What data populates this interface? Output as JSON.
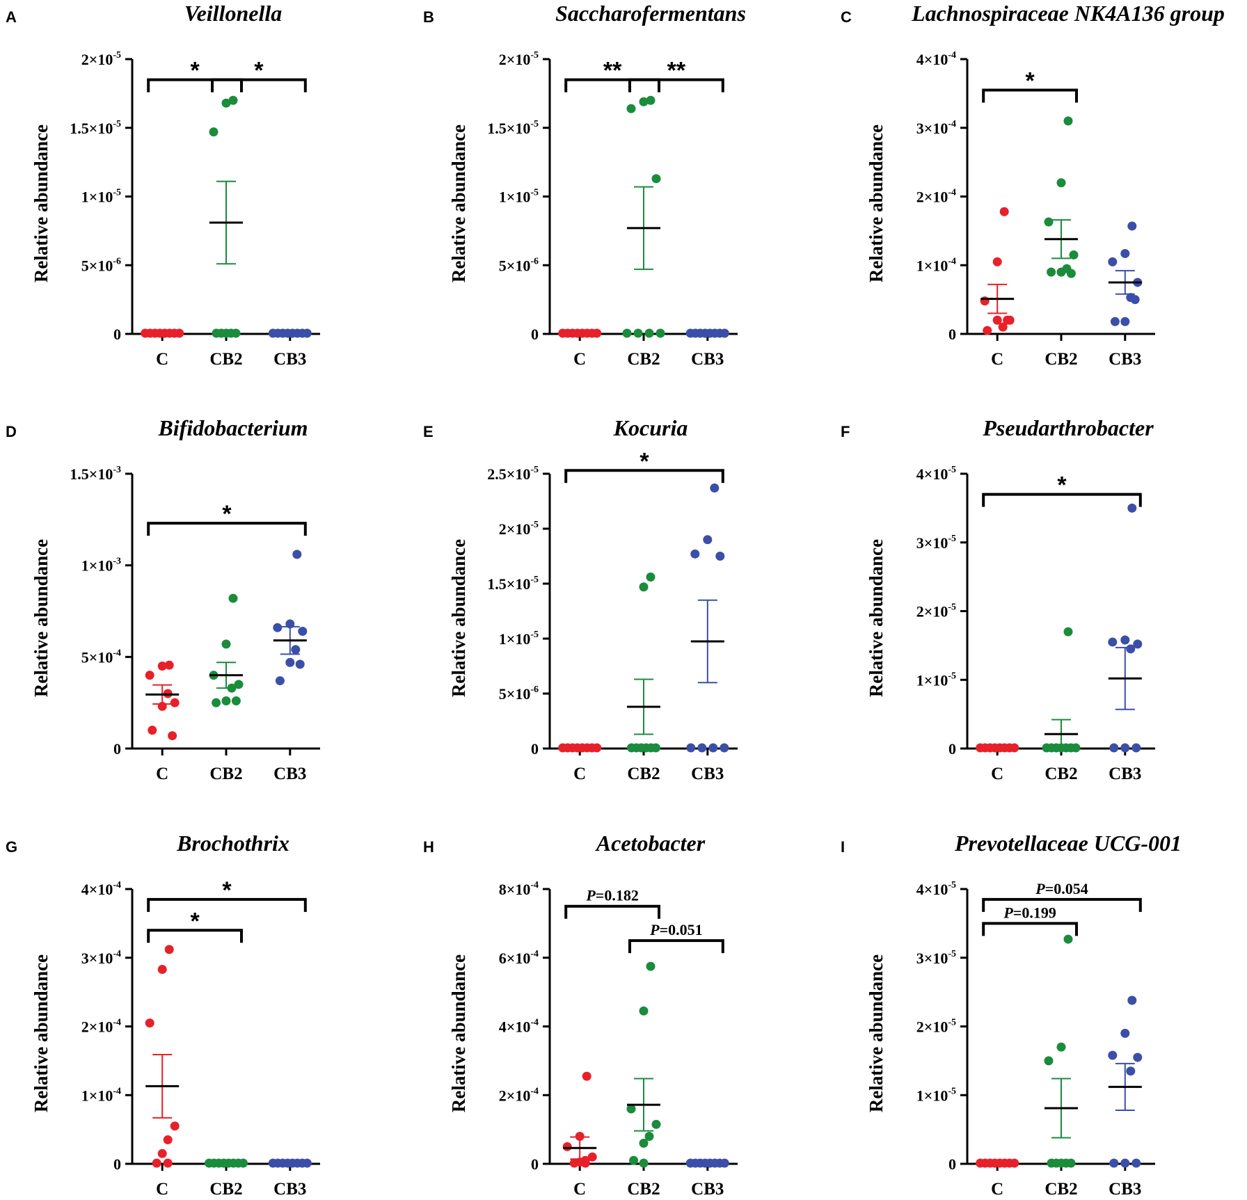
{
  "colors": {
    "C": "#e8202a",
    "CB2": "#1a8c3c",
    "CB3": "#3b4fa8",
    "axis": "#000000"
  },
  "panels": [
    {
      "letter": "A",
      "title": "Veillonella",
      "ylabel": "Relative abundance",
      "ticks": [
        {
          "value": 0,
          "label": "0",
          "exp": ""
        },
        {
          "value": 5e-06,
          "label": "5×10",
          "exp": "-6"
        },
        {
          "value": 1e-05,
          "label": "1×10",
          "exp": "-5"
        },
        {
          "value": 1.5e-05,
          "label": "1.5×10",
          "exp": "-5"
        },
        {
          "value": 2e-05,
          "label": "2×10",
          "exp": "-5"
        }
      ],
      "ymax": 2e-05,
      "groups": [
        {
          "name": "C",
          "points": [
            0,
            0,
            0,
            0,
            0,
            0,
            0,
            0
          ],
          "mean": 0,
          "sem": 0
        },
        {
          "name": "CB2",
          "points": [
            1.7e-05,
            1.68e-05,
            1.47e-05,
            0,
            0,
            0,
            0,
            0
          ],
          "mean": 8.1e-06,
          "sem": 3e-06
        },
        {
          "name": "CB3",
          "points": [
            0,
            0,
            0,
            0,
            0,
            0,
            0,
            0
          ],
          "mean": 0,
          "sem": 0
        }
      ],
      "sig": [
        {
          "from": 0,
          "to": 1,
          "y": 1.85e-05,
          "label": "*"
        },
        {
          "from": 1,
          "to": 2,
          "y": 1.85e-05,
          "label": "*"
        }
      ]
    },
    {
      "letter": "B",
      "title": "Saccharofermentans",
      "ylabel": "Relative abundance",
      "ticks": [
        {
          "value": 0,
          "label": "0",
          "exp": ""
        },
        {
          "value": 5e-06,
          "label": "5×10",
          "exp": "-6"
        },
        {
          "value": 1e-05,
          "label": "1×10",
          "exp": "-5"
        },
        {
          "value": 1.5e-05,
          "label": "1.5×10",
          "exp": "-5"
        },
        {
          "value": 2e-05,
          "label": "2×10",
          "exp": "-5"
        }
      ],
      "ymax": 2e-05,
      "groups": [
        {
          "name": "C",
          "points": [
            0,
            0,
            0,
            0,
            0,
            0,
            0,
            0
          ],
          "mean": 0,
          "sem": 0
        },
        {
          "name": "CB2",
          "points": [
            1.7e-05,
            1.69e-05,
            1.64e-05,
            1.13e-05,
            0,
            0,
            0,
            0
          ],
          "mean": 7.7e-06,
          "sem": 3e-06
        },
        {
          "name": "CB3",
          "points": [
            0,
            0,
            0,
            0,
            0,
            0,
            0,
            0
          ],
          "mean": 0,
          "sem": 0
        }
      ],
      "sig": [
        {
          "from": 0,
          "to": 1,
          "y": 1.85e-05,
          "label": "**"
        },
        {
          "from": 1,
          "to": 2,
          "y": 1.85e-05,
          "label": "**"
        }
      ]
    },
    {
      "letter": "C",
      "title": "Lachnospiraceae NK4A136 group",
      "ylabel": "Relative abundance",
      "ticks": [
        {
          "value": 0,
          "label": "0",
          "exp": ""
        },
        {
          "value": 0.0001,
          "label": "1×10",
          "exp": "-4"
        },
        {
          "value": 0.0002,
          "label": "2×10",
          "exp": "-4"
        },
        {
          "value": 0.0003,
          "label": "3×10",
          "exp": "-4"
        },
        {
          "value": 0.0004,
          "label": "4×10",
          "exp": "-4"
        }
      ],
      "ymax": 0.0004,
      "groups": [
        {
          "name": "C",
          "points": [
            0.000178,
            0.000105,
            4.8e-05,
            2e-05,
            1e-05,
            2e-05,
            5e-06,
            2e-05
          ],
          "mean": 5.1e-05,
          "sem": 2.1e-05
        },
        {
          "name": "CB2",
          "points": [
            0.00031,
            0.00022,
            0.000163,
            0.000115,
            9.5e-05,
            9e-05,
            9e-05,
            8.8e-05
          ],
          "mean": 0.000138,
          "sem": 2.8e-05
        },
        {
          "name": "CB3",
          "points": [
            0.000157,
            0.000117,
            0.000105,
            7.5e-05,
            5.3e-05,
            1.8e-05,
            1.8e-05,
            5e-05
          ],
          "mean": 7.5e-05,
          "sem": 1.7e-05
        }
      ],
      "sig": [
        {
          "from": 0,
          "to": 1,
          "y": 0.000355,
          "label": "*"
        }
      ]
    },
    {
      "letter": "D",
      "title": "Bifidobacterium",
      "ylabel": "Relative abundance",
      "ticks": [
        {
          "value": 0,
          "label": "0",
          "exp": ""
        },
        {
          "value": 0.0005,
          "label": "5×10",
          "exp": "-4"
        },
        {
          "value": 0.001,
          "label": "1×10",
          "exp": "-3"
        },
        {
          "value": 0.0015,
          "label": "1.5×10",
          "exp": "-3"
        }
      ],
      "ymax": 0.0015,
      "groups": [
        {
          "name": "C",
          "points": [
            0.000455,
            0.00045,
            0.0004,
            0.00025,
            0.0003,
            0.00023,
            0.0001,
            7e-05
          ],
          "mean": 0.000295,
          "sem": 5.2e-05
        },
        {
          "name": "CB2",
          "points": [
            0.00082,
            0.00057,
            0.0004,
            0.00035,
            0.00033,
            0.00026,
            0.00025,
            0.00026
          ],
          "mean": 0.0004,
          "sem": 7e-05
        },
        {
          "name": "CB3",
          "points": [
            0.00106,
            0.00068,
            0.00066,
            0.00064,
            0.00054,
            0.00047,
            0.00037,
            0.00046
          ],
          "mean": 0.00059,
          "sem": 7.5e-05
        }
      ],
      "sig": [
        {
          "from": 0,
          "to": 2,
          "y": 0.00123,
          "label": "*"
        }
      ]
    },
    {
      "letter": "E",
      "title": "Kocuria",
      "ylabel": "Relative abundance",
      "ticks": [
        {
          "value": 0,
          "label": "0",
          "exp": ""
        },
        {
          "value": 5e-06,
          "label": "5×10",
          "exp": "-6"
        },
        {
          "value": 1e-05,
          "label": "1×10",
          "exp": "-5"
        },
        {
          "value": 1.5e-05,
          "label": "1.5×10",
          "exp": "-5"
        },
        {
          "value": 2e-05,
          "label": "2×10",
          "exp": "-5"
        },
        {
          "value": 2.5e-05,
          "label": "2.5×10",
          "exp": "-5"
        }
      ],
      "ymax": 2.5e-05,
      "groups": [
        {
          "name": "C",
          "points": [
            0,
            0,
            0,
            0,
            0,
            0,
            0,
            0
          ],
          "mean": 0,
          "sem": 0
        },
        {
          "name": "CB2",
          "points": [
            1.56e-05,
            1.47e-05,
            0,
            0,
            0,
            0,
            0,
            0
          ],
          "mean": 3.8e-06,
          "sem": 2.5e-06
        },
        {
          "name": "CB3",
          "points": [
            2.37e-05,
            1.9e-05,
            1.77e-05,
            1.75e-05,
            0,
            0,
            0,
            0
          ],
          "mean": 9.75e-06,
          "sem": 3.75e-06
        }
      ],
      "sig": [
        {
          "from": 0,
          "to": 2,
          "y": 2.53e-05,
          "label": "*"
        }
      ]
    },
    {
      "letter": "F",
      "title": "Pseudarthrobacter",
      "ylabel": "Relative abundance",
      "ticks": [
        {
          "value": 0,
          "label": "0",
          "exp": ""
        },
        {
          "value": 1e-05,
          "label": "1×10",
          "exp": "-5"
        },
        {
          "value": 2e-05,
          "label": "2×10",
          "exp": "-5"
        },
        {
          "value": 3e-05,
          "label": "3×10",
          "exp": "-5"
        },
        {
          "value": 4e-05,
          "label": "4×10",
          "exp": "-5"
        }
      ],
      "ymax": 4e-05,
      "groups": [
        {
          "name": "C",
          "points": [
            0,
            0,
            0,
            0,
            0,
            0,
            0,
            0
          ],
          "mean": 0,
          "sem": 0
        },
        {
          "name": "CB2",
          "points": [
            1.7e-05,
            0,
            0,
            0,
            0,
            0,
            0,
            0
          ],
          "mean": 2.1e-06,
          "sem": 2.1e-06
        },
        {
          "name": "CB3",
          "points": [
            3.5e-05,
            1.58e-05,
            1.55e-05,
            1.52e-05,
            1.45e-05,
            0,
            0,
            0
          ],
          "mean": 1.02e-05,
          "sem": 4.5e-06
        }
      ],
      "sig": [
        {
          "from": 0,
          "to": 2,
          "y": 3.7e-05,
          "label": "*"
        }
      ]
    },
    {
      "letter": "G",
      "title": "Brochothrix",
      "ylabel": "Relative abundance",
      "ticks": [
        {
          "value": 0,
          "label": "0",
          "exp": ""
        },
        {
          "value": 0.0001,
          "label": "1×10",
          "exp": "-4"
        },
        {
          "value": 0.0002,
          "label": "2×10",
          "exp": "-4"
        },
        {
          "value": 0.0003,
          "label": "3×10",
          "exp": "-4"
        },
        {
          "value": 0.0004,
          "label": "4×10",
          "exp": "-4"
        }
      ],
      "ymax": 0.0004,
      "groups": [
        {
          "name": "C",
          "points": [
            0.000312,
            0.000283,
            0.000205,
            5.5e-05,
            3.5e-05,
            1.5e-05,
            0,
            0
          ],
          "mean": 0.000113,
          "sem": 4.6e-05
        },
        {
          "name": "CB2",
          "points": [
            0,
            0,
            0,
            0,
            0,
            0,
            0,
            0
          ],
          "mean": 0,
          "sem": 0
        },
        {
          "name": "CB3",
          "points": [
            0,
            0,
            0,
            0,
            0,
            0,
            0,
            0
          ],
          "mean": 0,
          "sem": 0
        }
      ],
      "sig": [
        {
          "from": 0,
          "to": 1,
          "y": 0.00034,
          "label": "*"
        },
        {
          "from": 0,
          "to": 2,
          "y": 0.000385,
          "label": "*"
        }
      ]
    },
    {
      "letter": "H",
      "title": "Acetobacter",
      "ylabel": "Relative abundance",
      "ticks": [
        {
          "value": 0,
          "label": "0",
          "exp": ""
        },
        {
          "value": 0.0002,
          "label": "2×10",
          "exp": "-4"
        },
        {
          "value": 0.0004,
          "label": "4×10",
          "exp": "-4"
        },
        {
          "value": 0.0006,
          "label": "6×10",
          "exp": "-4"
        },
        {
          "value": 0.0008,
          "label": "8×10",
          "exp": "-4"
        }
      ],
      "ymax": 0.0008,
      "groups": [
        {
          "name": "C",
          "points": [
            0.000255,
            8e-05,
            5e-05,
            2e-05,
            1e-05,
            5e-06,
            0,
            0
          ],
          "mean": 4.6e-05,
          "sem": 3.2e-05
        },
        {
          "name": "CB2",
          "points": [
            0.000575,
            0.000445,
            0.00016,
            0.000115,
            8e-05,
            6e-05,
            1e-05,
            0
          ],
          "mean": 0.000172,
          "sem": 7.6e-05
        },
        {
          "name": "CB3",
          "points": [
            0,
            0,
            0,
            0,
            0,
            0,
            0,
            0
          ],
          "mean": 0,
          "sem": 0
        }
      ],
      "sig": [
        {
          "from": 0,
          "to": 1,
          "y": 0.00075,
          "label": "P=0.182"
        },
        {
          "from": 1,
          "to": 2,
          "y": 0.00065,
          "label": "P=0.051"
        }
      ]
    },
    {
      "letter": "I",
      "title": "Prevotellaceae UCG-001",
      "ylabel": "Relative abundance",
      "ticks": [
        {
          "value": 0,
          "label": "0",
          "exp": ""
        },
        {
          "value": 1e-05,
          "label": "1×10",
          "exp": "-5"
        },
        {
          "value": 2e-05,
          "label": "2×10",
          "exp": "-5"
        },
        {
          "value": 3e-05,
          "label": "3×10",
          "exp": "-5"
        },
        {
          "value": 4e-05,
          "label": "4×10",
          "exp": "-5"
        }
      ],
      "ymax": 4e-05,
      "groups": [
        {
          "name": "C",
          "points": [
            0,
            0,
            0,
            0,
            0,
            0,
            0,
            0
          ],
          "mean": 0,
          "sem": 0
        },
        {
          "name": "CB2",
          "points": [
            3.27e-05,
            1.7e-05,
            1.5e-05,
            0,
            0,
            0,
            0,
            0
          ],
          "mean": 8.1e-06,
          "sem": 4.3e-06
        },
        {
          "name": "CB3",
          "points": [
            2.38e-05,
            1.9e-05,
            1.58e-05,
            1.55e-05,
            1.35e-05,
            0,
            0,
            0
          ],
          "mean": 1.12e-05,
          "sem": 3.4e-06
        }
      ],
      "sig": [
        {
          "from": 0,
          "to": 2,
          "y": 3.85e-05,
          "label": "P=0.054"
        },
        {
          "from": 0,
          "to": 1,
          "y": 3.5e-05,
          "label": "P=0.199"
        }
      ]
    }
  ],
  "chart_data": [
    {
      "type": "scatter",
      "title": "Veillonella",
      "ylabel": "Relative abundance",
      "categories": [
        "C",
        "CB2",
        "CB3"
      ],
      "ylim": [
        0,
        2e-05
      ]
    },
    {
      "type": "scatter",
      "title": "Saccharofermentans",
      "ylabel": "Relative abundance",
      "categories": [
        "C",
        "CB2",
        "CB3"
      ],
      "ylim": [
        0,
        2e-05
      ]
    },
    {
      "type": "scatter",
      "title": "Lachnospiraceae NK4A136 group",
      "ylabel": "Relative abundance",
      "categories": [
        "C",
        "CB2",
        "CB3"
      ],
      "ylim": [
        0,
        0.0004
      ]
    },
    {
      "type": "scatter",
      "title": "Bifidobacterium",
      "ylabel": "Relative abundance",
      "categories": [
        "C",
        "CB2",
        "CB3"
      ],
      "ylim": [
        0,
        0.0015
      ]
    },
    {
      "type": "scatter",
      "title": "Kocuria",
      "ylabel": "Relative abundance",
      "categories": [
        "C",
        "CB2",
        "CB3"
      ],
      "ylim": [
        0,
        2.5e-05
      ]
    },
    {
      "type": "scatter",
      "title": "Pseudarthrobacter",
      "ylabel": "Relative abundance",
      "categories": [
        "C",
        "CB2",
        "CB3"
      ],
      "ylim": [
        0,
        4e-05
      ]
    },
    {
      "type": "scatter",
      "title": "Brochothrix",
      "ylabel": "Relative abundance",
      "categories": [
        "C",
        "CB2",
        "CB3"
      ],
      "ylim": [
        0,
        0.0004
      ]
    },
    {
      "type": "scatter",
      "title": "Acetobacter",
      "ylabel": "Relative abundance",
      "categories": [
        "C",
        "CB2",
        "CB3"
      ],
      "ylim": [
        0,
        0.0008
      ]
    },
    {
      "type": "scatter",
      "title": "Prevotellaceae UCG-001",
      "ylabel": "Relative abundance",
      "categories": [
        "C",
        "CB2",
        "CB3"
      ],
      "ylim": [
        0,
        4e-05
      ]
    }
  ]
}
